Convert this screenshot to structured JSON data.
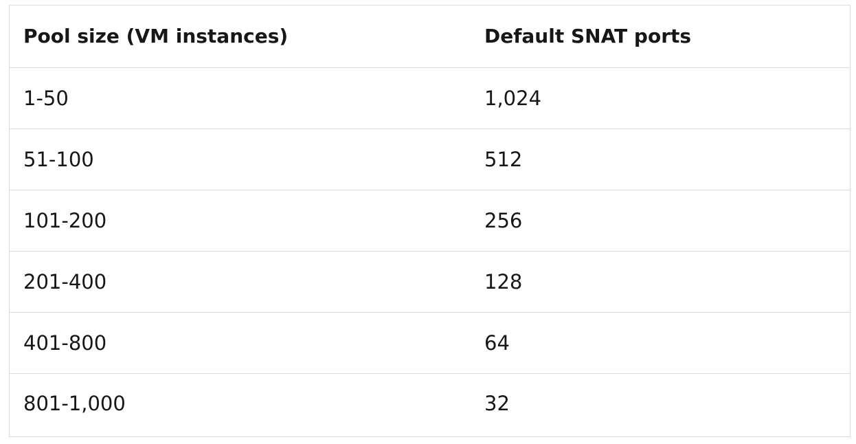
{
  "table": {
    "headers": [
      "Pool size (VM instances)",
      "Default SNAT ports"
    ],
    "rows": [
      [
        "1-50",
        "1,024"
      ],
      [
        "51-100",
        "512"
      ],
      [
        "101-200",
        "256"
      ],
      [
        "201-400",
        "128"
      ],
      [
        "401-800",
        "64"
      ],
      [
        "801-1,000",
        "32"
      ]
    ]
  }
}
